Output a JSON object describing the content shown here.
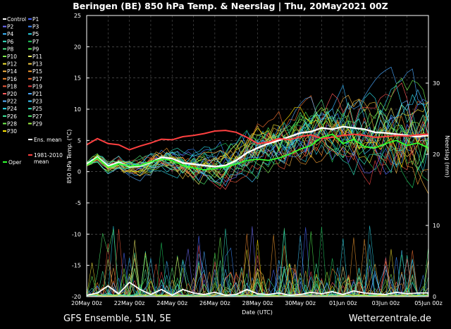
{
  "header": {
    "title": "Beringen  (BE)  850 hPa Temp. & Neerslag | Thu, 20May2021 00Z"
  },
  "footer": {
    "left": "GFS Ensemble, 51N, 5E",
    "right": "Wetterzentrale.de"
  },
  "chart_data": {
    "type": "line",
    "xlabel": "Date (UTC)",
    "ylabel": "850 hPa Temp. (°C)",
    "y2label": "Neerslag (mm)",
    "ylim": [
      -20,
      25
    ],
    "y2lim": [
      0,
      40
    ],
    "xlim": [
      "20May 00z",
      "05Jun 00z"
    ],
    "x_tick_labels": [
      "20May 00z",
      "22May 00z",
      "24May 00z",
      "26May 00z",
      "28May 00z",
      "30May 00z",
      "01Jun 00z",
      "03Jun 00z",
      "05Jun 00z"
    ],
    "y_ticks": [
      25,
      20,
      15,
      10,
      5,
      0,
      -5,
      -10,
      -15,
      -20
    ],
    "y2_ticks": [
      30,
      20,
      10,
      0
    ],
    "grid": true,
    "legend_placement": "left",
    "legend": [
      {
        "name": "Control",
        "color": "#ffffff"
      },
      {
        "name": "P1",
        "color": "#4a66ff"
      },
      {
        "name": "P2",
        "color": "#6e6eff"
      },
      {
        "name": "P3",
        "color": "#3b8bff"
      },
      {
        "name": "P4",
        "color": "#39b8ff"
      },
      {
        "name": "P5",
        "color": "#29d0e0"
      },
      {
        "name": "P6",
        "color": "#36e0c0"
      },
      {
        "name": "P7",
        "color": "#1fc85e"
      },
      {
        "name": "P8",
        "color": "#4ee08a"
      },
      {
        "name": "P9",
        "color": "#50f050"
      },
      {
        "name": "P10",
        "color": "#7ef050"
      },
      {
        "name": "P11",
        "color": "#eeee66"
      },
      {
        "name": "P12",
        "color": "#f0e030"
      },
      {
        "name": "P13",
        "color": "#f0c840"
      },
      {
        "name": "P14",
        "color": "#f0b040"
      },
      {
        "name": "P15",
        "color": "#f09a30"
      },
      {
        "name": "P16",
        "color": "#f08a30"
      },
      {
        "name": "P17",
        "color": "#f07030"
      },
      {
        "name": "P18",
        "color": "#f05a3a"
      },
      {
        "name": "P19",
        "color": "#e84040"
      },
      {
        "name": "P20",
        "color": "#ff5a5a"
      },
      {
        "name": "P21",
        "color": "#4aa8ff"
      },
      {
        "name": "P22",
        "color": "#5ab0ff"
      },
      {
        "name": "P23",
        "color": "#40c8ff"
      },
      {
        "name": "P24",
        "color": "#2ee0f0"
      },
      {
        "name": "P25",
        "color": "#30e8c0"
      },
      {
        "name": "P26",
        "color": "#40f0a0"
      },
      {
        "name": "P27",
        "color": "#50f070"
      },
      {
        "name": "P28",
        "color": "#70f050"
      },
      {
        "name": "P29",
        "color": "#a0f040"
      },
      {
        "name": "P30",
        "color": "#ffe600"
      },
      {
        "name": "Ens. mean",
        "color": "#ffffff"
      },
      {
        "name": "1981-2010 mean",
        "color": "#ff4040"
      },
      {
        "name": "Oper",
        "color": "#30ff30"
      }
    ],
    "series": [
      {
        "name": "Ens. mean",
        "axis": "left",
        "x": [
          0,
          0.5,
          1,
          1.5,
          2,
          2.5,
          3,
          3.5,
          4,
          4.5,
          5,
          5.5,
          6,
          6.5,
          7,
          7.5,
          8,
          8.5,
          9,
          9.5,
          10,
          10.5,
          11,
          11.5,
          12,
          12.5,
          13,
          13.5,
          14,
          14.5,
          15,
          15.5,
          16
        ],
        "values": [
          1.2,
          2.3,
          0.9,
          1.5,
          0.8,
          0.9,
          1.5,
          2.3,
          2.1,
          1.4,
          1.2,
          1.0,
          0.8,
          1.0,
          1.8,
          3.0,
          3.8,
          4.5,
          5.0,
          5.6,
          6.2,
          6.4,
          7.0,
          6.8,
          7.2,
          7.0,
          6.8,
          6.3,
          6.2,
          6.0,
          5.8,
          5.6,
          5.8
        ]
      },
      {
        "name": "1981-2010 mean",
        "axis": "left",
        "x": [
          0,
          0.5,
          1,
          1.5,
          2,
          2.5,
          3,
          3.5,
          4,
          4.5,
          5,
          5.5,
          6,
          6.5,
          7,
          7.5,
          8,
          8.5,
          9,
          9.5,
          10,
          10.5,
          11,
          11.5,
          12,
          12.5,
          13,
          13.5,
          14,
          14.5,
          15,
          15.5,
          16
        ],
        "values": [
          4.3,
          5.3,
          4.5,
          4.3,
          3.5,
          4.1,
          4.6,
          5.2,
          5.1,
          5.6,
          5.8,
          6.1,
          6.5,
          6.6,
          6.3,
          5.5,
          4.5,
          4.7,
          5.3,
          5.1,
          5.6,
          5.9,
          5.3,
          5.5,
          5.8,
          6.0,
          5.8,
          5.5,
          5.6,
          5.8,
          5.7,
          5.9,
          6.0
        ]
      },
      {
        "name": "Oper",
        "axis": "left",
        "x": [
          0,
          0.5,
          1,
          1.5,
          2,
          2.5,
          3,
          3.5,
          4,
          4.5,
          5,
          5.5,
          6,
          6.5,
          7,
          7.5,
          8,
          8.5,
          9,
          9.5,
          10,
          10.5,
          11,
          11.5,
          12,
          12.5,
          13,
          13.5,
          14,
          14.5,
          15,
          15.5,
          16
        ],
        "values": [
          1.0,
          2.2,
          0.7,
          1.3,
          0.9,
          1.0,
          1.6,
          2.0,
          1.8,
          1.0,
          0.6,
          0.3,
          0.5,
          0.8,
          1.2,
          1.8,
          2.0,
          1.8,
          2.2,
          2.8,
          3.6,
          4.2,
          5.5,
          6.0,
          4.5,
          5.2,
          4.0,
          3.8,
          4.5,
          5.0,
          4.2,
          4.6,
          3.8
        ]
      },
      {
        "name": "Ens. mean precipitation",
        "axis": "right",
        "x": [
          0,
          0.5,
          1,
          1.5,
          2,
          2.5,
          3,
          3.5,
          4,
          4.5,
          5,
          5.5,
          6,
          6.5,
          7,
          7.5,
          8,
          8.5,
          9,
          9.5,
          10,
          10.5,
          11,
          11.5,
          12,
          12.5,
          13,
          13.5,
          14,
          14.5,
          15,
          15.5,
          16
        ],
        "values": [
          0.2,
          0.5,
          1.5,
          0.4,
          2.0,
          1.0,
          0.3,
          1.0,
          0.2,
          1.0,
          0.5,
          0.3,
          0.6,
          0.2,
          0.3,
          1.0,
          0.4,
          0.3,
          0.5,
          0.2,
          0.3,
          0.6,
          0.4,
          0.7,
          0.3,
          0.8,
          0.5,
          0.4,
          0.3,
          0.6,
          0.4,
          0.5,
          0.5
        ]
      }
    ]
  }
}
